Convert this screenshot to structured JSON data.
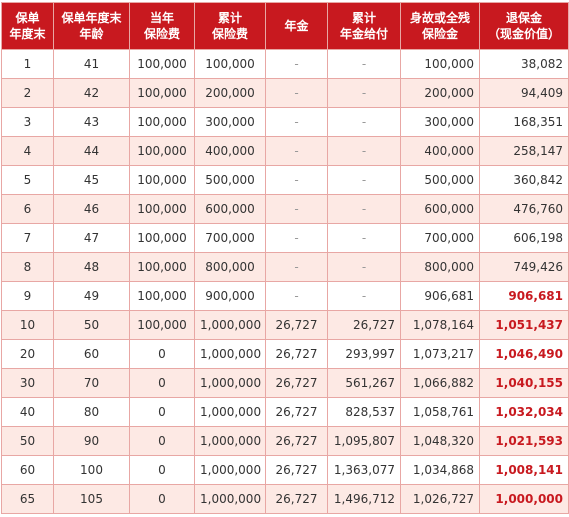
{
  "headers": [
    "保单\n年度末",
    "保单年度末\n年龄",
    "当年\n保险费",
    "累计\n保险费",
    "年金",
    "累计\n年金给付",
    "身故或全残\n保险金",
    "退保金\n（现金价值）"
  ],
  "rows": [
    {
      "year": "1",
      "age": "41",
      "premium": "100,000",
      "cum_premium": "100,000",
      "annuity": "-",
      "cum_annuity": "-",
      "death_benefit": "100,000",
      "surrender": "38,082",
      "highlight": false
    },
    {
      "year": "2",
      "age": "42",
      "premium": "100,000",
      "cum_premium": "200,000",
      "annuity": "-",
      "cum_annuity": "-",
      "death_benefit": "200,000",
      "surrender": "94,409",
      "highlight": false
    },
    {
      "year": "3",
      "age": "43",
      "premium": "100,000",
      "cum_premium": "300,000",
      "annuity": "-",
      "cum_annuity": "-",
      "death_benefit": "300,000",
      "surrender": "168,351",
      "highlight": false
    },
    {
      "year": "4",
      "age": "44",
      "premium": "100,000",
      "cum_premium": "400,000",
      "annuity": "-",
      "cum_annuity": "-",
      "death_benefit": "400,000",
      "surrender": "258,147",
      "highlight": false
    },
    {
      "year": "5",
      "age": "45",
      "premium": "100,000",
      "cum_premium": "500,000",
      "annuity": "-",
      "cum_annuity": "-",
      "death_benefit": "500,000",
      "surrender": "360,842",
      "highlight": false
    },
    {
      "year": "6",
      "age": "46",
      "premium": "100,000",
      "cum_premium": "600,000",
      "annuity": "-",
      "cum_annuity": "-",
      "death_benefit": "600,000",
      "surrender": "476,760",
      "highlight": false
    },
    {
      "year": "7",
      "age": "47",
      "premium": "100,000",
      "cum_premium": "700,000",
      "annuity": "-",
      "cum_annuity": "-",
      "death_benefit": "700,000",
      "surrender": "606,198",
      "highlight": false
    },
    {
      "year": "8",
      "age": "48",
      "premium": "100,000",
      "cum_premium": "800,000",
      "annuity": "-",
      "cum_annuity": "-",
      "death_benefit": "800,000",
      "surrender": "749,426",
      "highlight": false
    },
    {
      "year": "9",
      "age": "49",
      "premium": "100,000",
      "cum_premium": "900,000",
      "annuity": "-",
      "cum_annuity": "-",
      "death_benefit": "906,681",
      "surrender": "906,681",
      "highlight": true
    },
    {
      "year": "10",
      "age": "50",
      "premium": "100,000",
      "cum_premium": "1,000,000",
      "annuity": "26,727",
      "cum_annuity": "26,727",
      "death_benefit": "1,078,164",
      "surrender": "1,051,437",
      "highlight": true
    },
    {
      "year": "20",
      "age": "60",
      "premium": "0",
      "cum_premium": "1,000,000",
      "annuity": "26,727",
      "cum_annuity": "293,997",
      "death_benefit": "1,073,217",
      "surrender": "1,046,490",
      "highlight": true
    },
    {
      "year": "30",
      "age": "70",
      "premium": "0",
      "cum_premium": "1,000,000",
      "annuity": "26,727",
      "cum_annuity": "561,267",
      "death_benefit": "1,066,882",
      "surrender": "1,040,155",
      "highlight": true
    },
    {
      "year": "40",
      "age": "80",
      "premium": "0",
      "cum_premium": "1,000,000",
      "annuity": "26,727",
      "cum_annuity": "828,537",
      "death_benefit": "1,058,761",
      "surrender": "1,032,034",
      "highlight": true
    },
    {
      "year": "50",
      "age": "90",
      "premium": "0",
      "cum_premium": "1,000,000",
      "annuity": "26,727",
      "cum_annuity": "1,095,807",
      "death_benefit": "1,048,320",
      "surrender": "1,021,593",
      "highlight": true
    },
    {
      "year": "60",
      "age": "100",
      "premium": "0",
      "cum_premium": "1,000,000",
      "annuity": "26,727",
      "cum_annuity": "1,363,077",
      "death_benefit": "1,034,868",
      "surrender": "1,008,141",
      "highlight": true
    },
    {
      "year": "65",
      "age": "105",
      "premium": "0",
      "cum_premium": "1,000,000",
      "annuity": "26,727",
      "cum_annuity": "1,496,712",
      "death_benefit": "1,026,727",
      "surrender": "1,000,000",
      "highlight": true
    }
  ],
  "colors": {
    "header_bg": "#c8191f",
    "header_text": "#ffffff",
    "row_alt_bg": "#fde9e4",
    "highlight_text": "#c8191f",
    "border": "#e8a7a4"
  }
}
